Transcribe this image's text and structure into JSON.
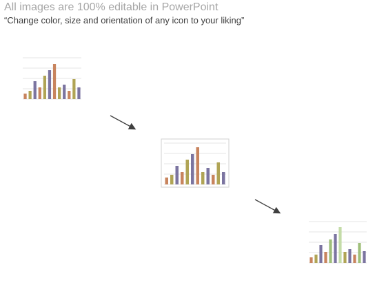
{
  "header": {
    "title": "All images are 100% editable in PowerPoint",
    "subtitle": "“Change color, size and orientation of any icon to your liking”"
  },
  "chart_data": [
    {
      "type": "bar",
      "values": [
        8,
        12,
        26,
        17,
        34,
        42,
        51,
        17,
        21,
        12,
        29,
        17
      ],
      "colors": [
        "#c8845e",
        "#b0a455",
        "#7b74a0",
        "#c8845e",
        "#b0a455",
        "#7b74a0",
        "#c8845e",
        "#b0a455",
        "#7b74a0",
        "#c8845e",
        "#b0a455",
        "#7b74a0"
      ],
      "ylim": [
        0,
        60
      ],
      "yticks": [
        0,
        15,
        30,
        45,
        60
      ],
      "grid": true,
      "frame": false
    },
    {
      "type": "bar",
      "values": [
        10,
        14,
        27,
        18,
        36,
        44,
        54,
        18,
        24,
        14,
        32,
        18
      ],
      "colors": [
        "#c8845e",
        "#b0a455",
        "#7b74a0",
        "#c8845e",
        "#b0a455",
        "#7b74a0",
        "#c8845e",
        "#b0a455",
        "#7b74a0",
        "#c8845e",
        "#b0a455",
        "#7b74a0"
      ],
      "ylim": [
        0,
        60
      ],
      "yticks": [
        0,
        15,
        30,
        45,
        60
      ],
      "grid": true,
      "frame": true
    },
    {
      "type": "bar",
      "values": [
        8,
        12,
        26,
        16,
        34,
        42,
        52,
        16,
        20,
        12,
        29,
        17
      ],
      "colors": [
        "#c8845e",
        "#b0a455",
        "#7b74a0",
        "#c8845e",
        "#9fbf7a",
        "#7b74a0",
        "#c4dca8",
        "#b0a455",
        "#7b74a0",
        "#c8845e",
        "#9fbf7a",
        "#7b74a0"
      ],
      "ylim": [
        0,
        60
      ],
      "yticks": [
        0,
        15,
        30,
        45,
        60
      ],
      "grid": true,
      "frame": false
    }
  ]
}
